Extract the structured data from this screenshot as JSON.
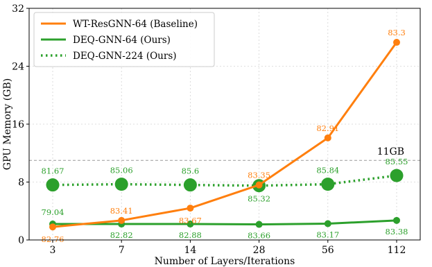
{
  "chart_data": {
    "type": "line",
    "xlabel": "Number of Layers/Iterations",
    "ylabel": "GPU Memory (GB)",
    "x_tick_labels": [
      "3",
      "7",
      "14",
      "28",
      "56",
      "112"
    ],
    "y_ticks": [
      0,
      8,
      16,
      24,
      32
    ],
    "ylim": [
      0,
      32
    ],
    "x_scale": "categorical (evenly spaced)",
    "grid": "dotted",
    "legend_position": "top-left",
    "reference_line": {
      "y": 11,
      "label": "11GB",
      "style": "dashed",
      "color": "#999999"
    },
    "series": [
      {
        "name": "WT-ResGNN-64 (Baseline)",
        "color": "#ff7f0e",
        "line_style": "solid",
        "marker_size": "small",
        "values": [
          1.8,
          2.7,
          4.4,
          7.6,
          14.1,
          27.3
        ],
        "point_labels": [
          "82.76",
          "83.41",
          "83.67",
          "83.35",
          "82.91",
          "83.3"
        ]
      },
      {
        "name": "DEQ-GNN-64 (Ours)",
        "color": "#2ca02c",
        "line_style": "solid",
        "marker_size": "small",
        "values": [
          2.2,
          2.2,
          2.2,
          2.15,
          2.25,
          2.7
        ],
        "point_labels": [
          "79.04",
          "82.82",
          "82.88",
          "83.66",
          "83.17",
          "83.38"
        ]
      },
      {
        "name": "DEQ-GNN-224 (Ours)",
        "color": "#2ca02c",
        "line_style": "dotted",
        "marker_size": "large",
        "values": [
          7.6,
          7.7,
          7.6,
          7.5,
          7.7,
          8.9
        ],
        "point_labels": [
          "81.67",
          "85.06",
          "85.6",
          "85.32",
          "85.84",
          "85.55"
        ]
      }
    ]
  }
}
